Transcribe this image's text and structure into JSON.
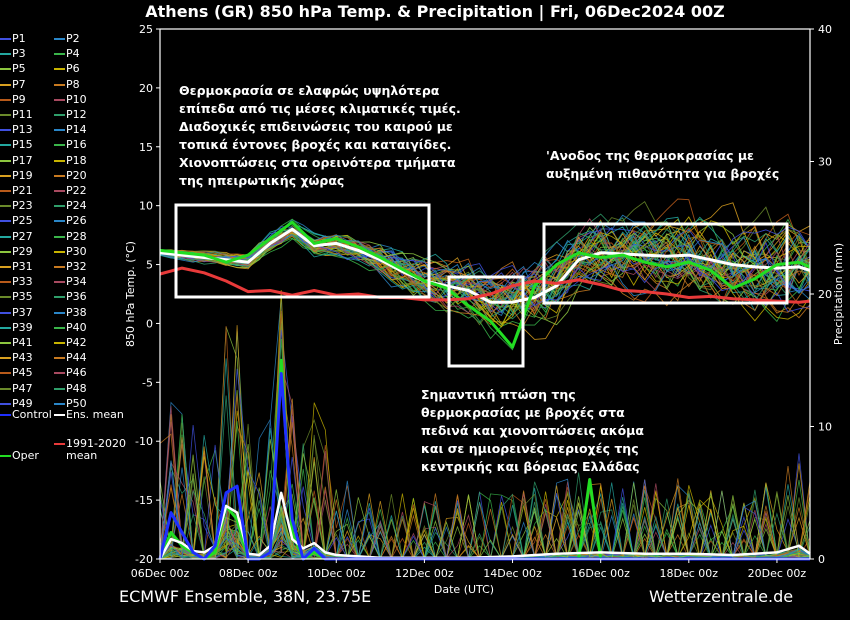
{
  "title": "Athens  (GR)  850 hPa Temp. & Precipitation | Fri, 06Dec2024 00Z",
  "footer": {
    "left": "ECMWF Ensemble, 38N, 23.75E",
    "right": "Wetterzentrale.de"
  },
  "annotations": [
    "Θερμοκρασία σε ελαφρώς υψηλότερα\nεπίπεδα από τις μέσες κλιματικές τιμές.\nΔιαδοχικές επιδεινώσεις του καιρού με\nτοπικά έντονες βροχές και καταιγίδες.\nΧιονοπτώσεις στα ορεινότερα τμήματα\nτης ηπειρωτικής χώρας",
    "'Ανοδος της θερμοκρασίας με\nαυξημένη πιθανότητα για βροχές",
    "Σημαντική πτώση της\nθερμοκρασίας με  βροχές στα\nπεδινά και χιονοπτώσεις ακόμα\nκαι σε ημιορεινές περιοχές της\nκεντρικής και βόρειας Ελλάδας"
  ],
  "legend": {
    "members": [
      "P1",
      "P2",
      "P3",
      "P4",
      "P5",
      "P6",
      "P7",
      "P8",
      "P9",
      "P10",
      "P11",
      "P12",
      "P13",
      "P14",
      "P15",
      "P16",
      "P17",
      "P18",
      "P19",
      "P20",
      "P21",
      "P22",
      "P23",
      "P24",
      "P25",
      "P26",
      "P27",
      "P28",
      "P29",
      "P30",
      "P31",
      "P32",
      "P33",
      "P34",
      "P35",
      "P36",
      "P37",
      "P38",
      "P39",
      "P40",
      "P41",
      "P42",
      "P43",
      "P44",
      "P45",
      "P46",
      "P47",
      "P48",
      "P49",
      "P50"
    ],
    "control": "Control",
    "ens_mean": "Ens. mean",
    "oper": "Oper",
    "clim_line1": "1991-2020",
    "clim_line2": "mean"
  },
  "colors": {
    "control": "#1f2fff",
    "ens_mean": "#ffffff",
    "oper": "#22dd22",
    "clim": "#e83a3a",
    "member_palette": [
      "#4050e0",
      "#2a86c8",
      "#23a8a0",
      "#3ab54a",
      "#8cc63f",
      "#c8b400",
      "#d9a020",
      "#c87a20",
      "#b85a1a",
      "#a84a60",
      "#6a8a2a",
      "#2f9e6a"
    ]
  },
  "chart_data": {
    "type": "line",
    "x_ticks": [
      "06Dec 00z",
      "08Dec 00z",
      "10Dec 00z",
      "12Dec 00z",
      "14Dec 00z",
      "16Dec 00z",
      "18Dec 00z",
      "20Dec 00z"
    ],
    "xlabel": "Date (UTC)",
    "ylabel_left": "850 hPa Temp. (°C)",
    "ylabel_right": "Precipitation (mm)",
    "ylim_left": [
      -20,
      25
    ],
    "yticks_left": [
      -20,
      -15,
      -10,
      -5,
      0,
      5,
      10,
      15,
      20,
      25
    ],
    "ylim_right": [
      0,
      40
    ],
    "yticks_right": [
      0,
      10,
      20,
      30,
      40
    ],
    "xlim_days": [
      0,
      14.75
    ],
    "series": [
      {
        "name": "Ens. mean",
        "x": [
          0,
          0.5,
          1,
          1.5,
          2,
          2.5,
          3,
          3.5,
          4,
          4.5,
          5,
          5.5,
          6,
          6.5,
          7,
          7.5,
          8,
          8.5,
          9,
          9.5,
          10,
          10.5,
          11,
          11.5,
          12,
          12.5,
          13,
          13.5,
          14,
          14.5,
          14.75
        ],
        "values": [
          6,
          5.8,
          5.6,
          5.4,
          5.2,
          6.8,
          8,
          6.6,
          6.8,
          6.2,
          5.4,
          4.4,
          3.6,
          3.2,
          2.8,
          1.8,
          1.8,
          2.2,
          3.2,
          5.4,
          6,
          5.9,
          5.8,
          5.7,
          5.8,
          5.4,
          5,
          4.8,
          4.7,
          4.8,
          4.5
        ]
      },
      {
        "name": "Oper",
        "x": [
          0,
          0.5,
          1,
          1.5,
          2,
          2.5,
          3,
          3.5,
          4,
          4.5,
          5,
          5.5,
          6,
          6.5,
          7,
          7.5,
          8,
          8.5,
          9,
          9.5,
          10,
          10.5,
          11,
          11.5,
          12,
          12.5,
          13,
          13.5,
          14,
          14.5,
          14.75
        ],
        "values": [
          6.2,
          6,
          5.8,
          5.2,
          5.8,
          7.2,
          8.6,
          6.8,
          7.2,
          6.5,
          5.6,
          4.6,
          3.6,
          3,
          1.5,
          0.2,
          -2,
          3.2,
          5,
          6,
          5.6,
          5.8,
          5.2,
          4.8,
          5.2,
          4.5,
          3,
          3.8,
          5,
          5.2,
          4.8
        ]
      },
      {
        "name": "1991-2020 mean",
        "x": [
          0,
          0.5,
          1,
          1.5,
          2,
          2.5,
          3,
          3.5,
          4,
          4.5,
          5,
          5.5,
          6,
          6.5,
          7,
          7.5,
          8,
          8.5,
          9,
          9.5,
          10,
          10.5,
          11,
          11.5,
          12,
          12.5,
          13,
          13.5,
          14,
          14.5,
          14.75
        ],
        "values": [
          4.2,
          4.7,
          4.3,
          3.6,
          2.7,
          2.8,
          2.4,
          2.8,
          2.4,
          2.5,
          2.2,
          2.2,
          2,
          2,
          2.1,
          2.5,
          3.2,
          3.6,
          3.4,
          3.7,
          3.3,
          2.8,
          2.7,
          2.5,
          2.2,
          2.3,
          2.1,
          2,
          1.9,
          1.8,
          1.9
        ]
      },
      {
        "name": "Oper precipitation",
        "axis": "right",
        "x": [
          0,
          0.25,
          0.5,
          0.75,
          1,
          1.25,
          1.5,
          1.75,
          2,
          2.25,
          2.5,
          2.75,
          3,
          3.25,
          3.5,
          3.75,
          4,
          4.25,
          4.5,
          5,
          6,
          7,
          8,
          9,
          9.5,
          9.75,
          10,
          11,
          12,
          13,
          14,
          14.75
        ],
        "values": [
          0,
          2,
          1,
          0.5,
          0,
          0.5,
          4,
          3,
          0,
          0,
          0.5,
          15,
          2,
          0,
          0.5,
          0,
          0,
          0,
          0,
          0,
          0,
          0,
          0,
          0,
          0,
          6,
          0,
          0,
          0,
          0,
          0,
          0
        ]
      },
      {
        "name": "Ens. mean precipitation",
        "axis": "right",
        "x": [
          0,
          0.25,
          0.5,
          0.75,
          1,
          1.25,
          1.5,
          1.75,
          2,
          2.25,
          2.5,
          2.75,
          3,
          3.25,
          3.5,
          3.75,
          4,
          4.5,
          5,
          6,
          7,
          8,
          9,
          10,
          11,
          12,
          13,
          14,
          14.5,
          14.75
        ],
        "values": [
          0,
          1.5,
          1.2,
          0.6,
          0.5,
          1,
          4,
          3.5,
          0.4,
          0.3,
          1,
          5,
          1.5,
          0.8,
          1.2,
          0.5,
          0.3,
          0.2,
          0.1,
          0.1,
          0.1,
          0.2,
          0.4,
          0.5,
          0.4,
          0.4,
          0.3,
          0.5,
          1,
          0.4
        ]
      },
      {
        "name": "Control precipitation",
        "axis": "right",
        "x": [
          0,
          0.25,
          0.5,
          0.75,
          1,
          1.25,
          1.5,
          1.75,
          2,
          2.25,
          2.5,
          2.75,
          3,
          3.25,
          3.5,
          3.75,
          4,
          5,
          6,
          7,
          8,
          9,
          10,
          11,
          12,
          13,
          14,
          14.75
        ],
        "values": [
          0,
          3.5,
          2,
          0.5,
          0,
          1,
          5,
          5.5,
          0,
          0,
          0.5,
          14,
          3,
          0,
          0.8,
          0,
          0,
          0,
          0,
          0,
          0,
          0,
          0,
          0,
          0,
          0,
          0,
          0
        ]
      }
    ]
  }
}
